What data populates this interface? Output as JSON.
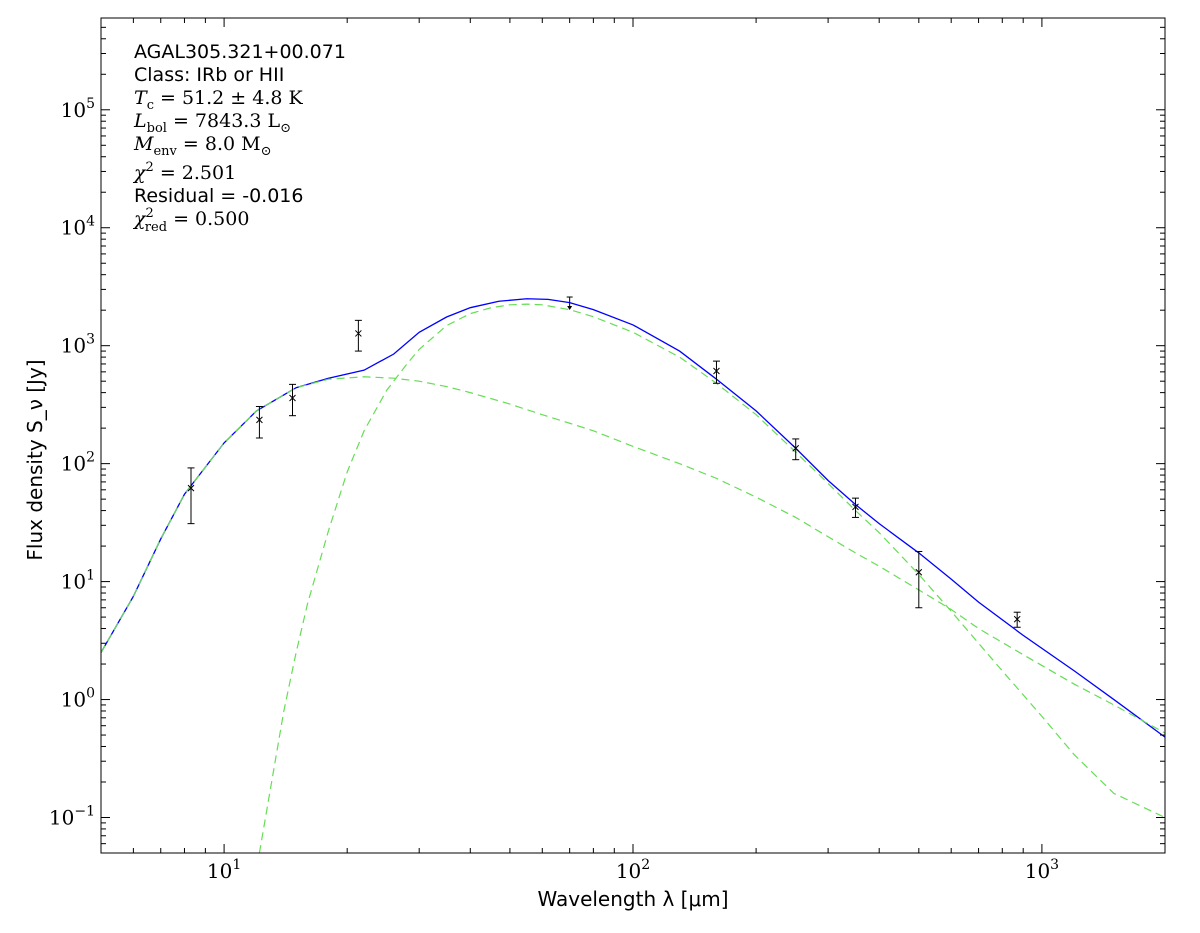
{
  "chart_data": {
    "type": "line",
    "xlabel": "Wavelength λ [μm]",
    "ylabel": "Flux density S_ν [Jy]",
    "x_scale": "log",
    "y_scale": "log",
    "xlim": [
      5,
      2000
    ],
    "ylim": [
      0.05,
      600000
    ],
    "grid": false,
    "x_tick_labels": [
      {
        "value": 10,
        "base": "10",
        "exp": "1"
      },
      {
        "value": 100,
        "base": "10",
        "exp": "2"
      },
      {
        "value": 1000,
        "base": "10",
        "exp": "3"
      }
    ],
    "y_tick_labels": [
      {
        "value": 0.1,
        "base": "10",
        "exp": "−1"
      },
      {
        "value": 1,
        "base": "10",
        "exp": "0"
      },
      {
        "value": 10,
        "base": "10",
        "exp": "1"
      },
      {
        "value": 100,
        "base": "10",
        "exp": "2"
      },
      {
        "value": 1000,
        "base": "10",
        "exp": "3"
      },
      {
        "value": 10000,
        "base": "10",
        "exp": "4"
      },
      {
        "value": 100000,
        "base": "10",
        "exp": "5"
      }
    ],
    "annotations": {
      "source": "AGAL305.321+00.071",
      "class_label": "Class: IRb or HII",
      "tc": {
        "sym": "T",
        "sub": "c",
        "rest": " = 51.2 ± 4.8 K"
      },
      "lbol": {
        "sym": "L",
        "sub": "bol",
        "rest": " = 7843.3 L",
        "sun": "⊙"
      },
      "menv": {
        "sym": "M",
        "sub": "env",
        "rest": " = 8.0 M",
        "sun": "⊙"
      },
      "chi2": {
        "sym": "χ",
        "sup": "2",
        "rest": " = 2.501"
      },
      "residual": "Residual = -0.016",
      "chi2red": {
        "sym": "χ",
        "sup": "2",
        "sub": "red",
        "rest": " = 0.500"
      }
    },
    "series": [
      {
        "kind": "total",
        "color": "#0000ff",
        "dash": "solid",
        "x": [
          5,
          6,
          7,
          8,
          10,
          12,
          15,
          18,
          22,
          26,
          30,
          35,
          40,
          47,
          55,
          62,
          70,
          80,
          100,
          130,
          160,
          200,
          250,
          300,
          350,
          400,
          500,
          600,
          700,
          900,
          1200,
          1500,
          2000
        ],
        "y": [
          2.5,
          7.5,
          23,
          55,
          150,
          280,
          440,
          530,
          620,
          850,
          1300,
          1750,
          2100,
          2380,
          2500,
          2470,
          2320,
          2020,
          1500,
          900,
          520,
          280,
          135,
          72,
          45,
          31,
          17.5,
          10.5,
          6.7,
          3.5,
          1.75,
          1.0,
          0.48
        ]
      },
      {
        "kind": "warm-component",
        "color": "#66dd55",
        "dash": "dashed",
        "x": [
          5,
          6,
          7,
          8,
          10,
          12,
          15,
          18,
          22,
          26,
          30,
          35,
          40,
          50,
          60,
          70,
          80,
          100,
          130,
          160,
          200,
          250,
          300,
          350,
          400,
          500,
          600,
          700,
          900,
          1200,
          1500,
          2000
        ],
        "y": [
          2.5,
          7.5,
          23,
          55,
          150,
          280,
          440,
          520,
          545,
          530,
          500,
          450,
          400,
          320,
          260,
          220,
          190,
          140,
          100,
          75,
          52,
          35,
          24,
          17.5,
          13.5,
          8.5,
          5.8,
          4.0,
          2.4,
          1.35,
          0.9,
          0.52
        ]
      },
      {
        "kind": "cold-component",
        "color": "#66dd55",
        "dash": "dashed",
        "x": [
          12.2,
          13,
          14,
          15,
          16,
          18,
          20,
          22,
          25,
          28,
          30,
          35,
          40,
          45,
          50,
          55,
          60,
          70,
          80,
          100,
          130,
          160,
          200,
          250,
          300,
          350,
          400,
          500,
          600,
          700,
          800,
          1000,
          1200,
          1500,
          2000
        ],
        "y": [
          0.05,
          0.18,
          0.8,
          2.5,
          6.5,
          27,
          85,
          190,
          420,
          700,
          930,
          1480,
          1870,
          2100,
          2220,
          2250,
          2220,
          2020,
          1760,
          1300,
          800,
          480,
          260,
          125,
          68,
          40,
          26,
          11.5,
          5.6,
          3.0,
          1.75,
          0.72,
          0.34,
          0.16,
          0.1
        ]
      }
    ],
    "points": [
      {
        "x": 8.3,
        "y": 62,
        "lo": 31,
        "hi": 92,
        "type": "x"
      },
      {
        "x": 12.2,
        "y": 235,
        "lo": 165,
        "hi": 305,
        "type": "x"
      },
      {
        "x": 14.7,
        "y": 360,
        "lo": 255,
        "hi": 470,
        "type": "x"
      },
      {
        "x": 21.3,
        "y": 1270,
        "lo": 900,
        "hi": 1640,
        "type": "x"
      },
      {
        "x": 70,
        "y": 2300,
        "type": "upper"
      },
      {
        "x": 160,
        "y": 610,
        "lo": 480,
        "hi": 740,
        "type": "x"
      },
      {
        "x": 250,
        "y": 135,
        "lo": 108,
        "hi": 162,
        "type": "x"
      },
      {
        "x": 350,
        "y": 43,
        "lo": 35,
        "hi": 51,
        "type": "x"
      },
      {
        "x": 500,
        "y": 12,
        "lo": 6,
        "hi": 18,
        "type": "x"
      },
      {
        "x": 870,
        "y": 4.8,
        "lo": 4.1,
        "hi": 5.5,
        "type": "x"
      }
    ]
  }
}
